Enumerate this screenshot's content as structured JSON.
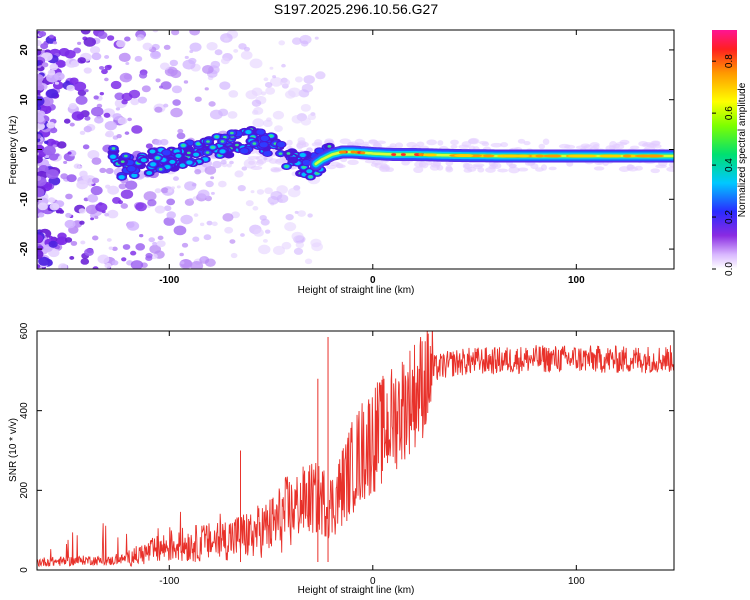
{
  "title": "S197.2025.296.10.56.G27",
  "colors": {
    "snr_line": "#e8312a",
    "ridge_core": "#ffd200",
    "ridge_edge": "#00b3ff",
    "scatter": "#8a2be2"
  },
  "chart_data": [
    {
      "type": "heatmap",
      "xlabel": "Height of straight line (km)",
      "ylabel": "Frequency (Hz)",
      "xlim": [
        -165,
        148
      ],
      "ylim": [
        -24,
        24
      ],
      "x_ticks": [
        -100,
        0,
        100
      ],
      "y_ticks": [
        -20,
        -10,
        0,
        10,
        20
      ],
      "colorbar": {
        "label": "Normalized spectral amplitude",
        "range": [
          0,
          0.92
        ],
        "ticks": [
          0.0,
          0.2,
          0.4,
          0.6,
          0.8
        ]
      },
      "ridge": {
        "x": [
          -125,
          -110,
          -95,
          -80,
          -70,
          -60,
          -50,
          -40,
          -35,
          -30,
          -25,
          -20,
          -15,
          -10,
          0,
          10,
          20,
          40,
          60,
          80,
          100,
          120,
          148
        ],
        "frequency": [
          -3.5,
          -2.5,
          -1.5,
          0.5,
          1,
          2,
          1,
          -2,
          -3,
          -3.5,
          -2,
          -1,
          -0.5,
          -0.5,
          -0.8,
          -1,
          -1,
          -1.2,
          -1.3,
          -1.3,
          -1.3,
          -1.3,
          -1.3
        ]
      }
    },
    {
      "type": "line",
      "xlabel": "Height of straight line (km)",
      "ylabel": "SNR (10 * v/v)",
      "xlim": [
        -165,
        148
      ],
      "ylim": [
        0,
        600
      ],
      "x_ticks": [
        -100,
        0,
        100
      ],
      "y_ticks": [
        0,
        200,
        400,
        600
      ],
      "series": [
        {
          "name": "SNR",
          "x": [
            -165,
            -150,
            -140,
            -130,
            -120,
            -110,
            -100,
            -90,
            -80,
            -70,
            -60,
            -50,
            -45,
            -40,
            -35,
            -30,
            -25,
            -20,
            -15,
            -10,
            -5,
            0,
            5,
            10,
            15,
            20,
            25,
            30,
            40,
            50,
            60,
            80,
            100,
            120,
            148
          ],
          "values": [
            20,
            22,
            25,
            22,
            30,
            45,
            60,
            65,
            70,
            80,
            90,
            110,
            130,
            150,
            170,
            180,
            175,
            160,
            210,
            260,
            300,
            330,
            350,
            380,
            410,
            440,
            470,
            505,
            520,
            525,
            525,
            530,
            530,
            528,
            530
          ]
        }
      ],
      "spikes": [
        {
          "x": -22,
          "value": 585
        },
        {
          "x": -27,
          "value": 480
        },
        {
          "x": -65,
          "value": 300
        }
      ]
    }
  ]
}
